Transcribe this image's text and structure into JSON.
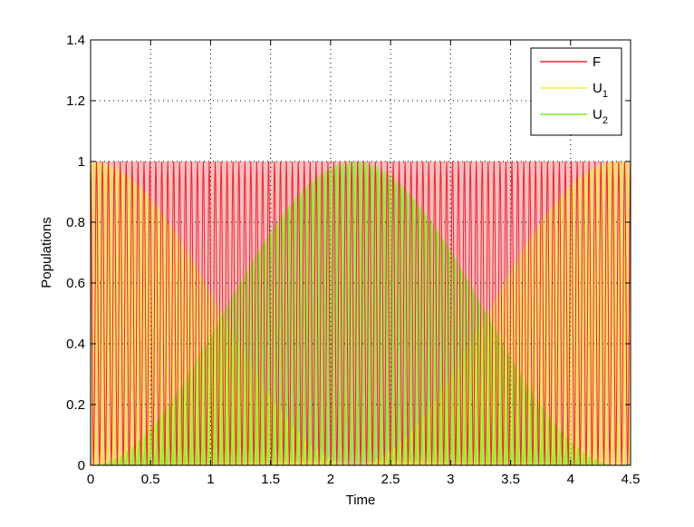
{
  "chart_data": {
    "type": "line",
    "title": "",
    "xlabel": "Time",
    "ylabel": "Populations",
    "xlim": [
      0,
      4.5
    ],
    "ylim": [
      0,
      1.4
    ],
    "x_ticks": [
      "0",
      "0.5",
      "1",
      "1.5",
      "2",
      "2.5",
      "3",
      "3.5",
      "4",
      "4.5"
    ],
    "y_ticks": [
      "0",
      "0.2",
      "0.4",
      "0.6",
      "0.8",
      "1",
      "1.2",
      "1.4"
    ],
    "grid": true,
    "legend_position": "top-right",
    "series": [
      {
        "name": "F",
        "color": "#e8262e",
        "envelope": "full-oscillation",
        "oscillation_count": 91
      },
      {
        "name": "U_1",
        "name_base": "U",
        "name_sub": "1",
        "color": "#f2f03a",
        "envelope": "cos-squared",
        "max_at": [
          0,
          4.5
        ],
        "min_at": [
          2.2
        ]
      },
      {
        "name": "U_2",
        "name_base": "U",
        "name_sub": "2",
        "color": "#7ff01e",
        "envelope": "sin-squared",
        "max_at": [
          2.2
        ],
        "min_at": [
          0,
          4.5
        ]
      }
    ]
  }
}
